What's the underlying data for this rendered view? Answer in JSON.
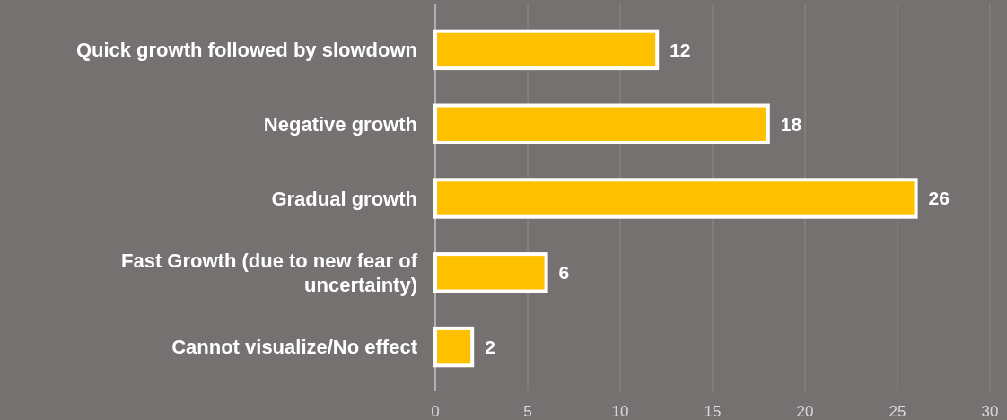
{
  "chart_data": {
    "type": "bar",
    "orientation": "horizontal",
    "categories": [
      "Quick growth followed by slowdown",
      "Negative growth",
      "Gradual growth",
      "Fast Growth (due to new fear of uncertainty)",
      "Cannot visualize/No effect"
    ],
    "values": [
      12,
      18,
      26,
      6,
      2
    ],
    "color": "#ffc000",
    "xlim": [
      0,
      30
    ],
    "xticks": [
      0,
      5,
      10,
      15,
      20,
      25,
      30
    ],
    "grid": "x",
    "data_labels": true
  }
}
